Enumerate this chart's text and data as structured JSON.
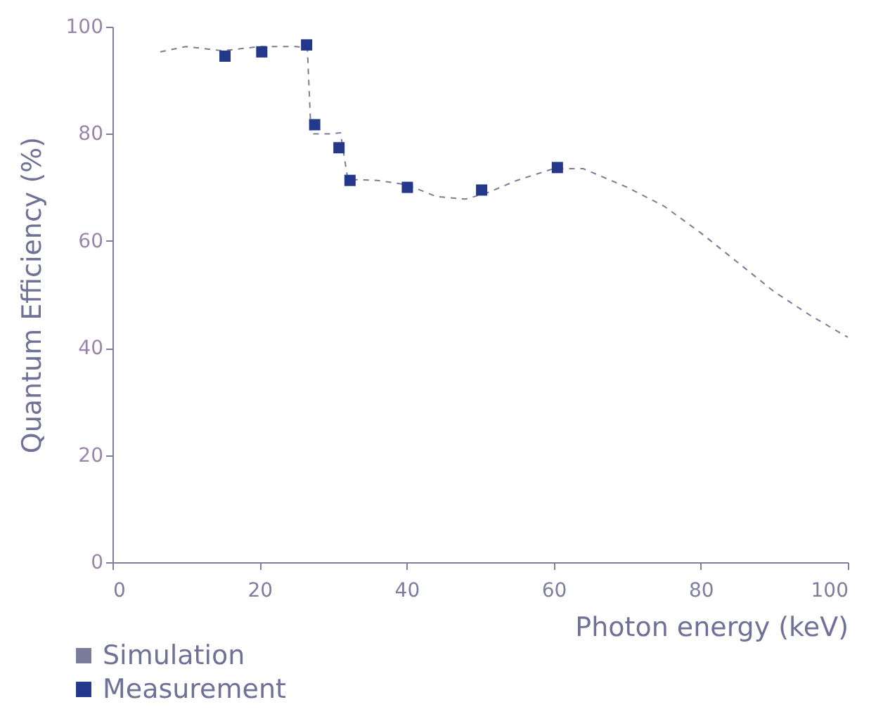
{
  "chart_data": {
    "type": "line",
    "xlabel": "Photon energy (keV)",
    "ylabel": "Quantum Efficiency (%)",
    "xlim": [
      0,
      100
    ],
    "ylim": [
      0,
      100
    ],
    "xticks": [
      0,
      20,
      40,
      60,
      80,
      100
    ],
    "yticks": [
      0,
      20,
      40,
      60,
      80,
      100
    ],
    "grid": false,
    "legend": "bottom left",
    "series": [
      {
        "name": "Simulation",
        "type": "line",
        "line_style": "dashed",
        "color": "#7b7b9b",
        "x": [
          6.5,
          10,
          15,
          20,
          25,
          26.5,
          27,
          30,
          31,
          32,
          36,
          40,
          44,
          48,
          51,
          55,
          60,
          64,
          70,
          75,
          80,
          85,
          90,
          95,
          100
        ],
        "values": [
          95.3,
          96.3,
          95.5,
          96.3,
          96.3,
          96,
          80,
          80,
          80.2,
          71.5,
          71.3,
          70.5,
          68.3,
          67.8,
          69,
          71.3,
          73.5,
          73.5,
          70,
          66.5,
          61.5,
          56,
          50.5,
          46,
          42
        ]
      },
      {
        "name": "Measurement",
        "type": "scatter",
        "marker": "square",
        "color": "#23388a",
        "x": [
          15.3,
          20.3,
          26.4,
          27.5,
          30.8,
          32.3,
          40.1,
          50.2,
          60.5
        ],
        "values": [
          94.5,
          95.3,
          96.6,
          81.7,
          77.4,
          71.3,
          70,
          69.5,
          73.7
        ]
      }
    ]
  }
}
